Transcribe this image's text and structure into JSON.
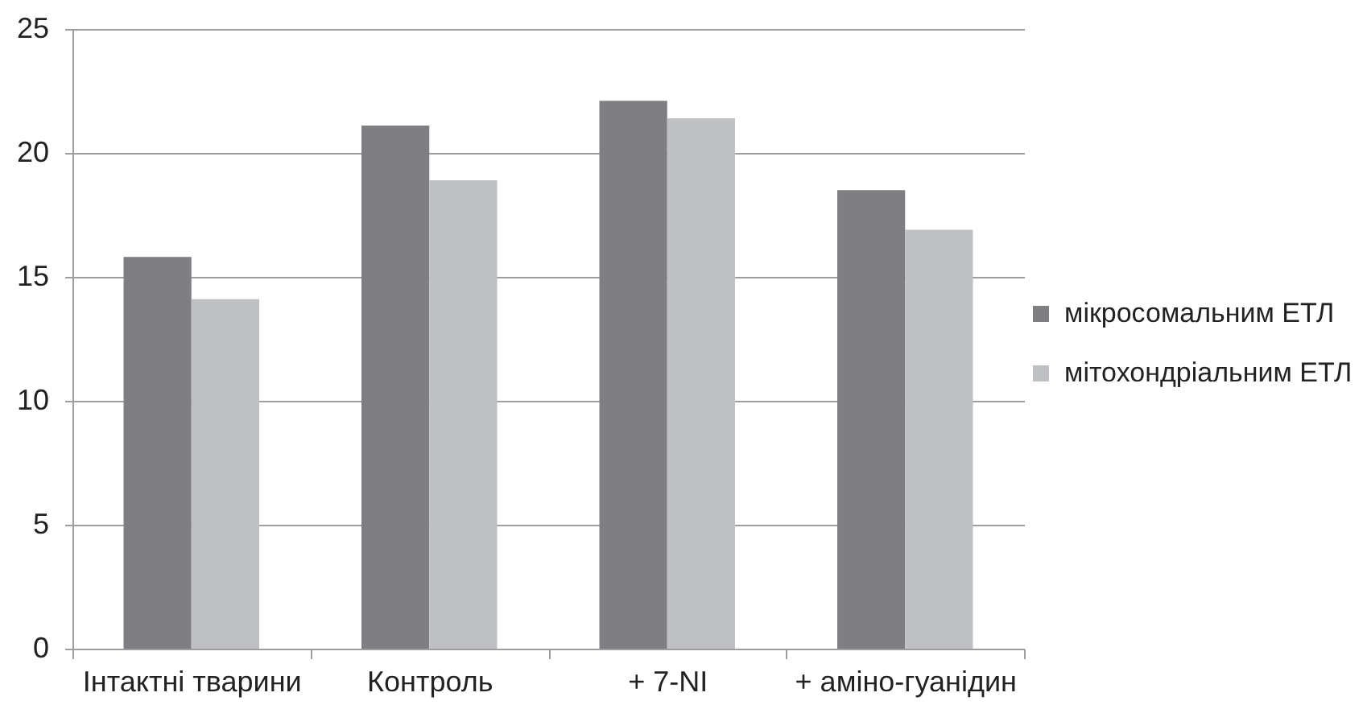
{
  "chart_data": {
    "type": "bar",
    "categories": [
      "Інтактні тварини",
      "Контроль",
      "+ 7-NI",
      "+ аміно-гуанідин"
    ],
    "series": [
      {
        "name": "мікросомальним ЕТЛ",
        "color": "#7f7f83",
        "values": [
          15.8,
          21.1,
          22.1,
          18.5
        ]
      },
      {
        "name": "мітохондріальним ЕТЛ",
        "color": "#bfc0c4",
        "values": [
          14.1,
          18.9,
          21.4,
          16.9
        ]
      }
    ],
    "ylim": [
      0,
      25
    ],
    "yticks": [
      0,
      5,
      10,
      15,
      20,
      25
    ],
    "grid": "y",
    "legend": "right"
  }
}
